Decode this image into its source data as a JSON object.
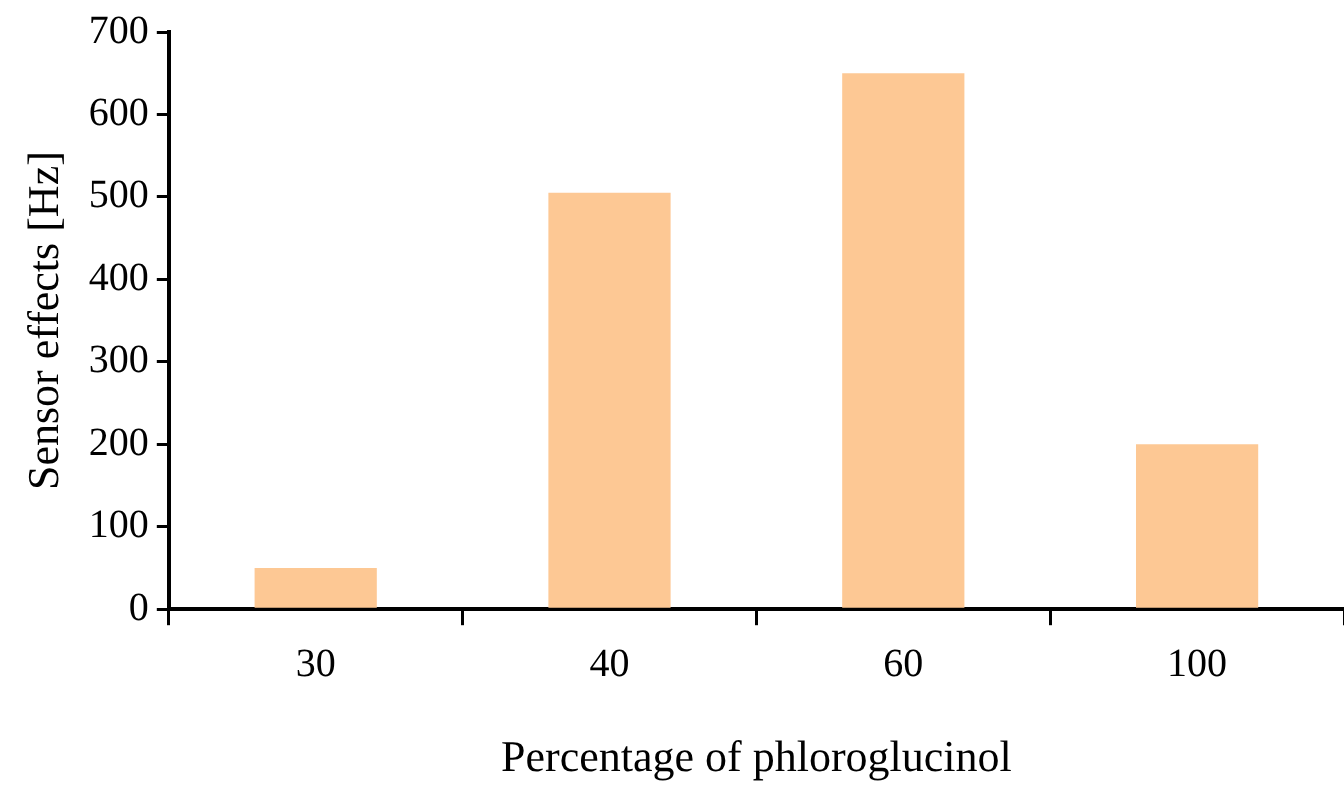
{
  "chart_data": {
    "type": "bar",
    "xlabel": "Percentage of phloroglucinol",
    "ylabel": "Sensor effects [Hz]",
    "categories": [
      "30",
      "40",
      "60",
      "100"
    ],
    "values": [
      50,
      505,
      650,
      200
    ],
    "color": "#fdc894",
    "ylim": [
      0,
      700
    ],
    "yticks": [
      0,
      100,
      200,
      300,
      400,
      500,
      600,
      700
    ],
    "grid": false,
    "legend": false
  }
}
